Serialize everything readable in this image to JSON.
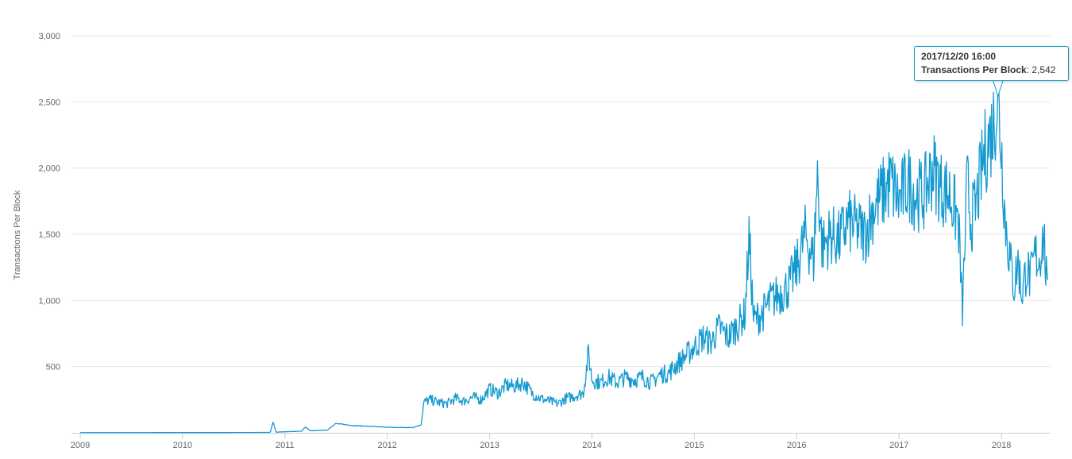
{
  "chart_data": {
    "type": "line",
    "title": "",
    "xlabel": "",
    "ylabel": "Transactions Per Block",
    "x_tick_labels": [
      "2009",
      "2010",
      "2011",
      "2012",
      "2013",
      "2014",
      "2015",
      "2016",
      "2017",
      "2018"
    ],
    "y_tick_labels": [
      "500",
      "1,000",
      "1,500",
      "2,000",
      "2,500",
      "3,000"
    ],
    "y_ticks": [
      500,
      1000,
      1500,
      2000,
      2500,
      3000
    ],
    "ylim": [
      0,
      3000
    ],
    "xlim": [
      "2009-01-01",
      "2018-06-20"
    ],
    "grid": "horizontal",
    "legend": "none",
    "color": "#149ad0",
    "series": [
      {
        "x": [
          "2009-01-01",
          "2009-06-01",
          "2010-01-01",
          "2010-06-01",
          "2010-11-10",
          "2010-11-20",
          "2010-12-01",
          "2011-01-01",
          "2011-03-01",
          "2011-03-15",
          "2011-04-01",
          "2011-06-01",
          "2011-07-01",
          "2011-09-01",
          "2011-12-01",
          "2012-02-01",
          "2012-04-01",
          "2012-05-01",
          "2012-05-10",
          "2012-06-01",
          "2012-07-01",
          "2012-08-01",
          "2012-09-01",
          "2012-10-01",
          "2012-11-01",
          "2012-12-01",
          "2013-01-01",
          "2013-02-01",
          "2013-03-01",
          "2013-04-01",
          "2013-05-01",
          "2013-06-01",
          "2013-07-01",
          "2013-08-01",
          "2013-09-01",
          "2013-10-01",
          "2013-11-01",
          "2013-12-01",
          "2013-12-20",
          "2014-01-01",
          "2014-02-01",
          "2014-03-01",
          "2014-04-01",
          "2014-05-01",
          "2014-06-01",
          "2014-07-01",
          "2014-08-01",
          "2014-09-01",
          "2014-10-01",
          "2014-11-01",
          "2014-12-01",
          "2015-01-01",
          "2015-02-01",
          "2015-03-01",
          "2015-04-01",
          "2015-05-01",
          "2015-06-01",
          "2015-07-01",
          "2015-07-15",
          "2015-08-01",
          "2015-09-01",
          "2015-10-01",
          "2015-11-01",
          "2015-12-01",
          "2016-01-01",
          "2016-02-01",
          "2016-03-01",
          "2016-03-15",
          "2016-04-01",
          "2016-05-01",
          "2016-06-01",
          "2016-07-01",
          "2016-08-01",
          "2016-09-01",
          "2016-10-01",
          "2016-11-01",
          "2016-12-01",
          "2017-01-01",
          "2017-02-01",
          "2017-03-01",
          "2017-04-01",
          "2017-05-01",
          "2017-06-01",
          "2017-07-01",
          "2017-08-01",
          "2017-08-15",
          "2017-09-01",
          "2017-09-15",
          "2017-10-01",
          "2017-11-01",
          "2017-12-01",
          "2017-12-20",
          "2018-01-01",
          "2018-01-15",
          "2018-02-01",
          "2018-02-15",
          "2018-03-01",
          "2018-03-15",
          "2018-04-01",
          "2018-04-15",
          "2018-05-01",
          "2018-05-15",
          "2018-06-01",
          "2018-06-15"
        ],
        "values": [
          1,
          1,
          2,
          2,
          3,
          80,
          5,
          8,
          12,
          45,
          15,
          20,
          70,
          55,
          45,
          40,
          40,
          60,
          230,
          250,
          230,
          220,
          260,
          240,
          270,
          250,
          330,
          300,
          360,
          350,
          380,
          300,
          260,
          240,
          220,
          260,
          280,
          300,
          600,
          400,
          380,
          420,
          380,
          420,
          400,
          420,
          380,
          440,
          450,
          520,
          580,
          650,
          720,
          680,
          800,
          720,
          800,
          900,
          1480,
          850,
          900,
          1000,
          1050,
          1100,
          1250,
          1500,
          1300,
          1950,
          1400,
          1500,
          1450,
          1600,
          1550,
          1500,
          1700,
          1800,
          1900,
          1750,
          1900,
          1800,
          1800,
          2000,
          1850,
          1800,
          1600,
          900,
          1900,
          1600,
          1700,
          2100,
          2300,
          2542,
          2150,
          1600,
          1300,
          1100,
          1300,
          1050,
          1250,
          1150,
          1350,
          1300,
          1500,
          1000
        ]
      }
    ],
    "tooltip": {
      "date": "2017/12/20 16:00",
      "series_label": "Transactions Per Block",
      "value": "2,542"
    }
  }
}
